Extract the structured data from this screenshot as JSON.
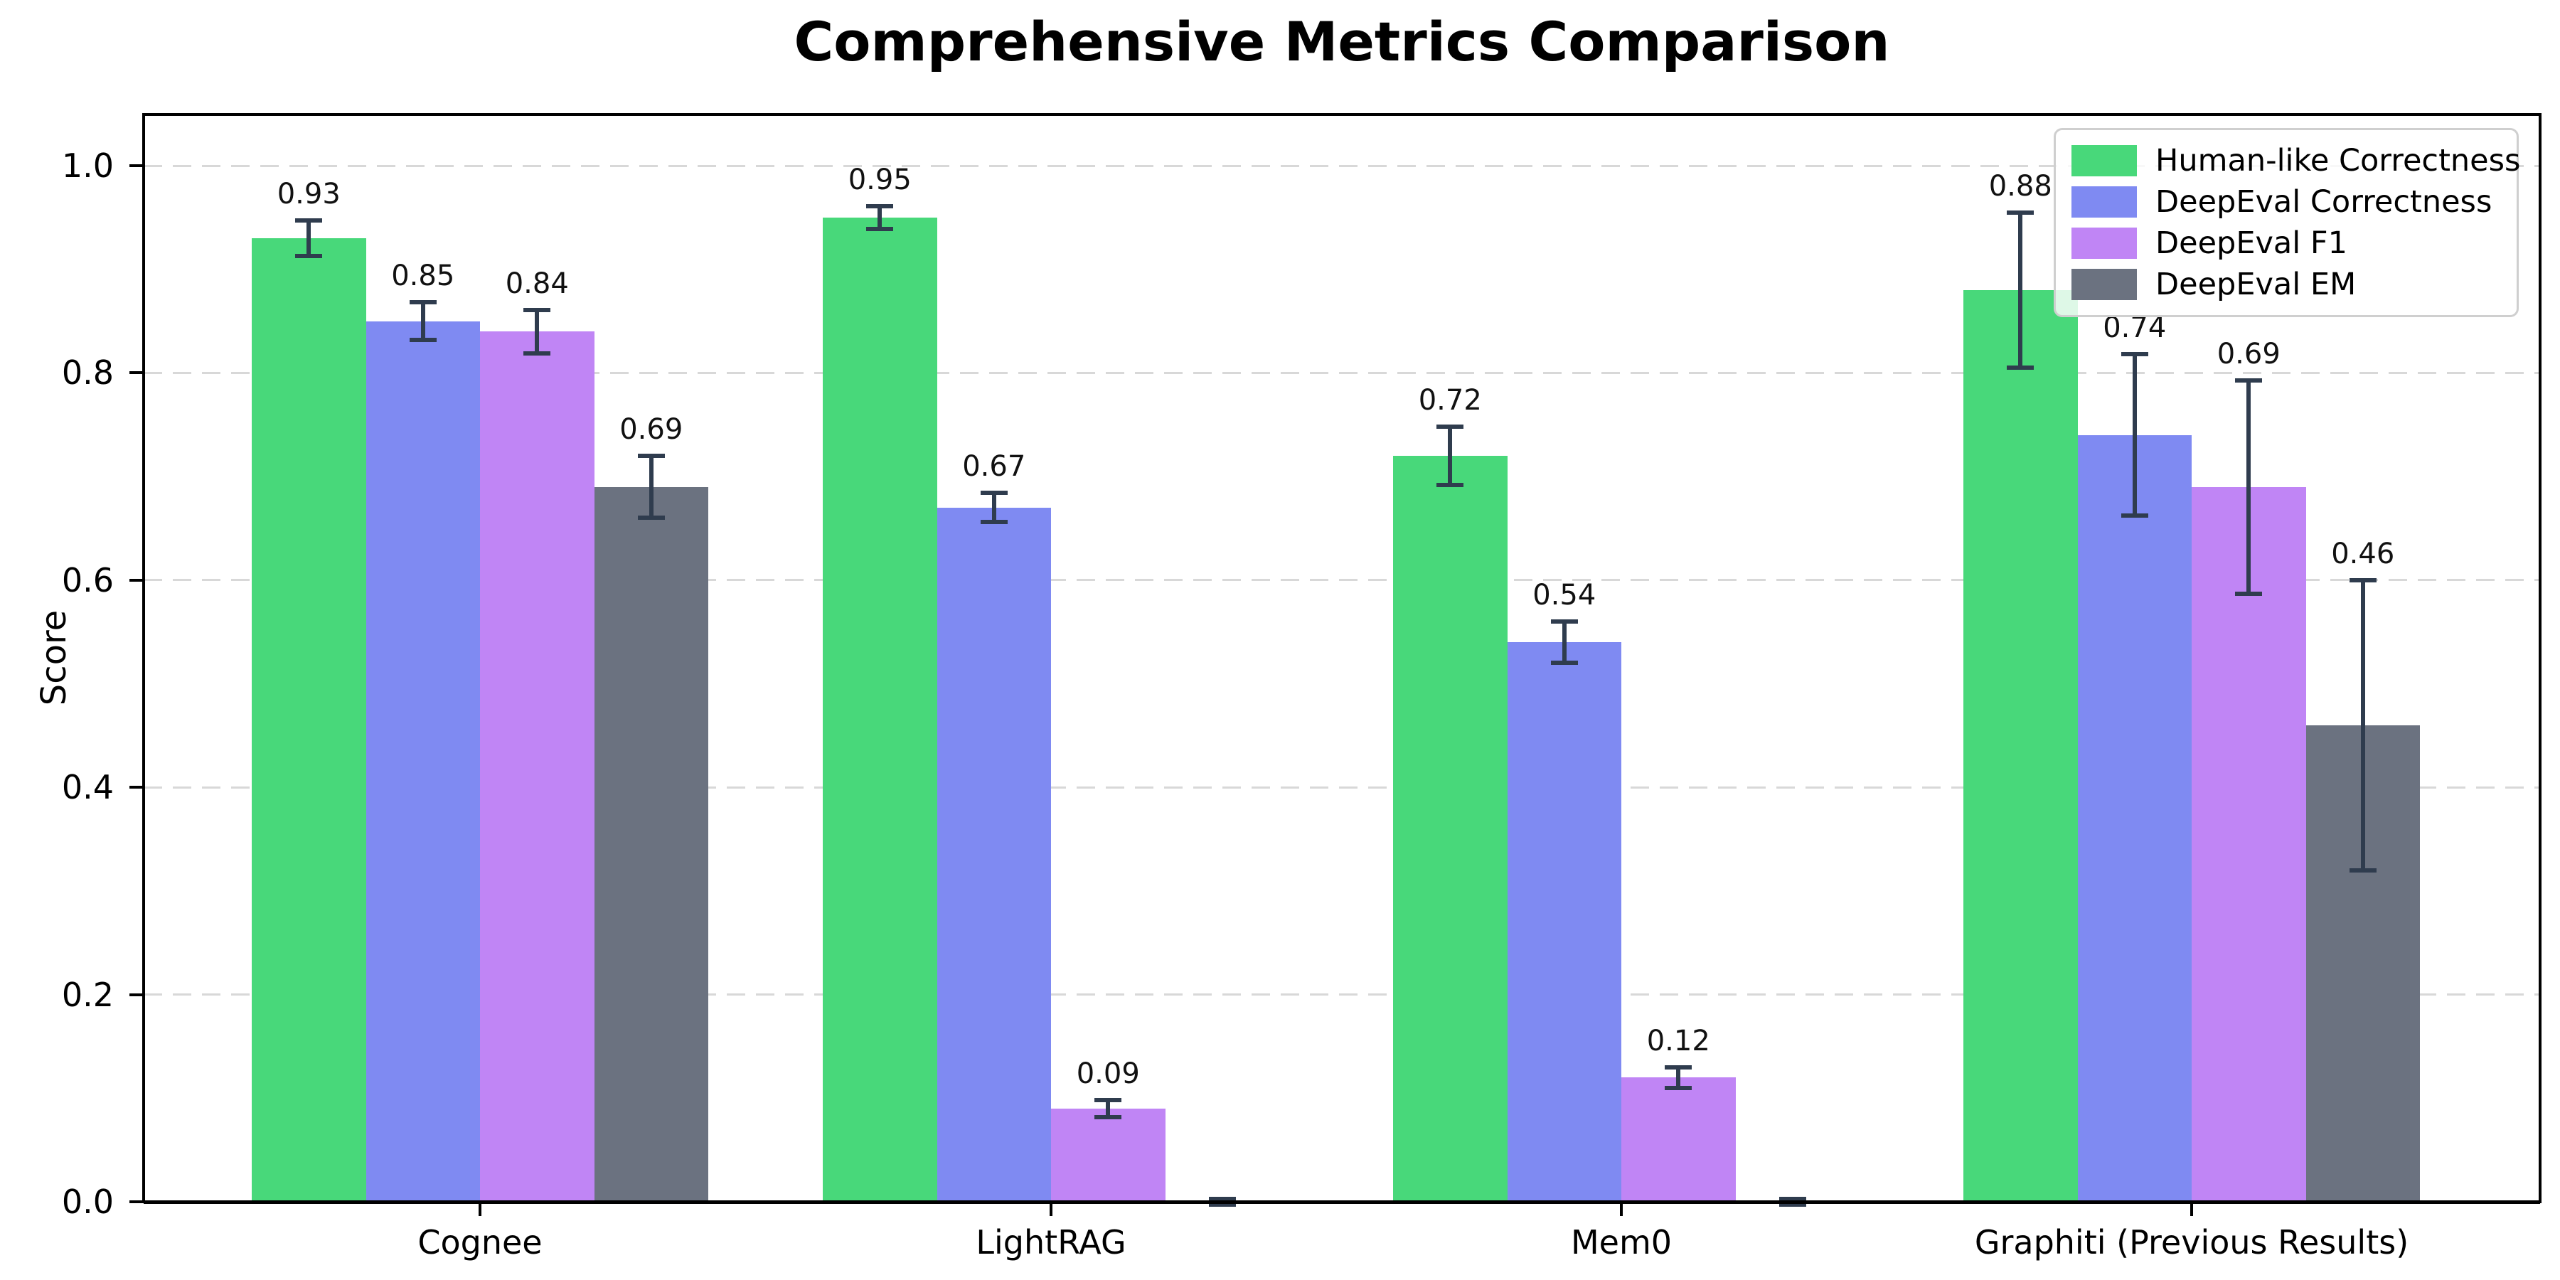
{
  "chart_data": {
    "type": "bar",
    "title": "Comprehensive Metrics Comparison",
    "ylabel": "Score",
    "xlabel": "",
    "categories": [
      "Cognee",
      "LightRAG",
      "Mem0",
      "Graphiti (Previous Results)"
    ],
    "series": [
      {
        "name": "Human-like Correctness",
        "color": "#48d87a",
        "values": [
          0.93,
          0.95,
          0.72,
          0.88
        ],
        "errors": [
          0.017,
          0.011,
          0.028,
          0.075
        ],
        "labels": [
          "0.93",
          "0.95",
          "0.72",
          "0.88"
        ]
      },
      {
        "name": "DeepEval Correctness",
        "color": "#7f8af2",
        "values": [
          0.85,
          0.67,
          0.54,
          0.74
        ],
        "errors": [
          0.018,
          0.014,
          0.02,
          0.078
        ],
        "labels": [
          "0.85",
          "0.67",
          "0.54",
          "0.74"
        ]
      },
      {
        "name": "DeepEval F1",
        "color": "#c085f5",
        "values": [
          0.84,
          0.09,
          0.12,
          0.69
        ],
        "errors": [
          0.021,
          0.008,
          0.01,
          0.103
        ],
        "labels": [
          "0.84",
          "0.09",
          "0.12",
          "0.69"
        ]
      },
      {
        "name": "DeepEval EM",
        "color": "#6b7280",
        "values": [
          0.69,
          0.0,
          0.0,
          0.46
        ],
        "errors": [
          0.03,
          0.003,
          0.003,
          0.14
        ],
        "labels": [
          "0.69",
          null,
          null,
          "0.46"
        ]
      }
    ],
    "yticks": [
      "0.0",
      "0.2",
      "0.4",
      "0.6",
      "0.8",
      "1.0"
    ],
    "ytick_values": [
      0.0,
      0.2,
      0.4,
      0.6,
      0.8,
      1.0
    ],
    "ylim": [
      0.0,
      1.05
    ],
    "grid": "horizontal-dashed",
    "legend_position": "upper-right",
    "error_bar_color": "#2f3c4e",
    "grid_color": "#d8d8d8"
  }
}
